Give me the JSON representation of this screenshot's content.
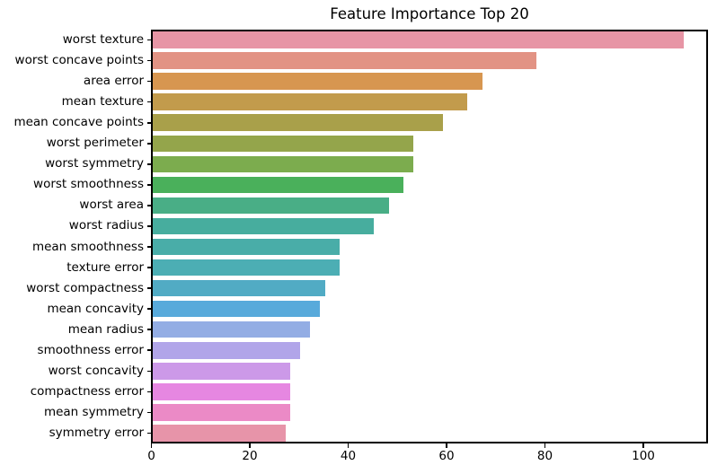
{
  "chart_data": {
    "type": "bar",
    "orientation": "horizontal",
    "title": "Feature Importance Top 20",
    "xlabel": "",
    "ylabel": "",
    "categories": [
      "worst texture",
      "worst concave points",
      "area error",
      "mean texture",
      "mean concave points",
      "worst perimeter",
      "worst symmetry",
      "worst smoothness",
      "worst area",
      "worst radius",
      "mean smoothness",
      "texture error",
      "worst compactness",
      "mean concavity",
      "mean radius",
      "smoothness error",
      "worst concavity",
      "compactness error",
      "mean symmetry",
      "symmetry error"
    ],
    "values": [
      108,
      78,
      67,
      64,
      59,
      53,
      53,
      51,
      48,
      45,
      38,
      38,
      35,
      34,
      32,
      30,
      28,
      28,
      28,
      27
    ],
    "bar_colors": [
      "#e795a5",
      "#e29384",
      "#d79650",
      "#c29b4c",
      "#a9a04a",
      "#94a54b",
      "#7cac4e",
      "#4ab05b",
      "#49ae86",
      "#47ad9e",
      "#49ada8",
      "#4caeb4",
      "#51abc4",
      "#58aadb",
      "#93ade4",
      "#b1a5e9",
      "#cc99e8",
      "#e687e1",
      "#eb8ac6",
      "#e794a9"
    ],
    "xticks": [
      0,
      20,
      40,
      60,
      80,
      100
    ],
    "xlim": [
      0,
      113.3
    ],
    "grid": false,
    "legend": "none",
    "axis_color": "#000000",
    "background_color": "#ffffff"
  }
}
